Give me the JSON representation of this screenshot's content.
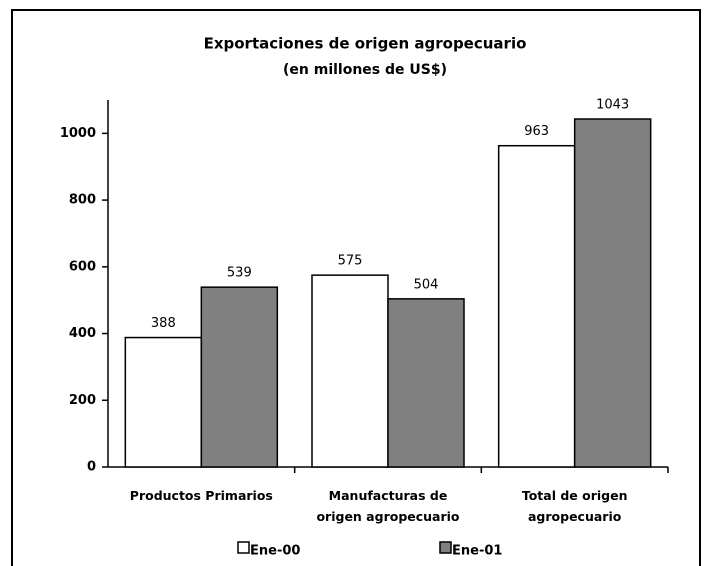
{
  "chart_data": {
    "type": "bar",
    "title": "Exportaciones de origen agropecuario",
    "subtitle": "(en millones de US$)",
    "categories": [
      "Productos Primarios",
      "Manufacturas de\norigen agropecuario",
      "Total de origen\nagropecuario"
    ],
    "series": [
      {
        "name": "Ene-00",
        "color": "#ffffff",
        "values": [
          388,
          575,
          963
        ]
      },
      {
        "name": "Ene-01",
        "color": "#808080",
        "values": [
          539,
          504,
          1043
        ]
      }
    ],
    "ylim": [
      0,
      1100
    ],
    "yticks": [
      0,
      200,
      400,
      600,
      800,
      1000
    ],
    "grid": false,
    "legend": "bottom"
  }
}
